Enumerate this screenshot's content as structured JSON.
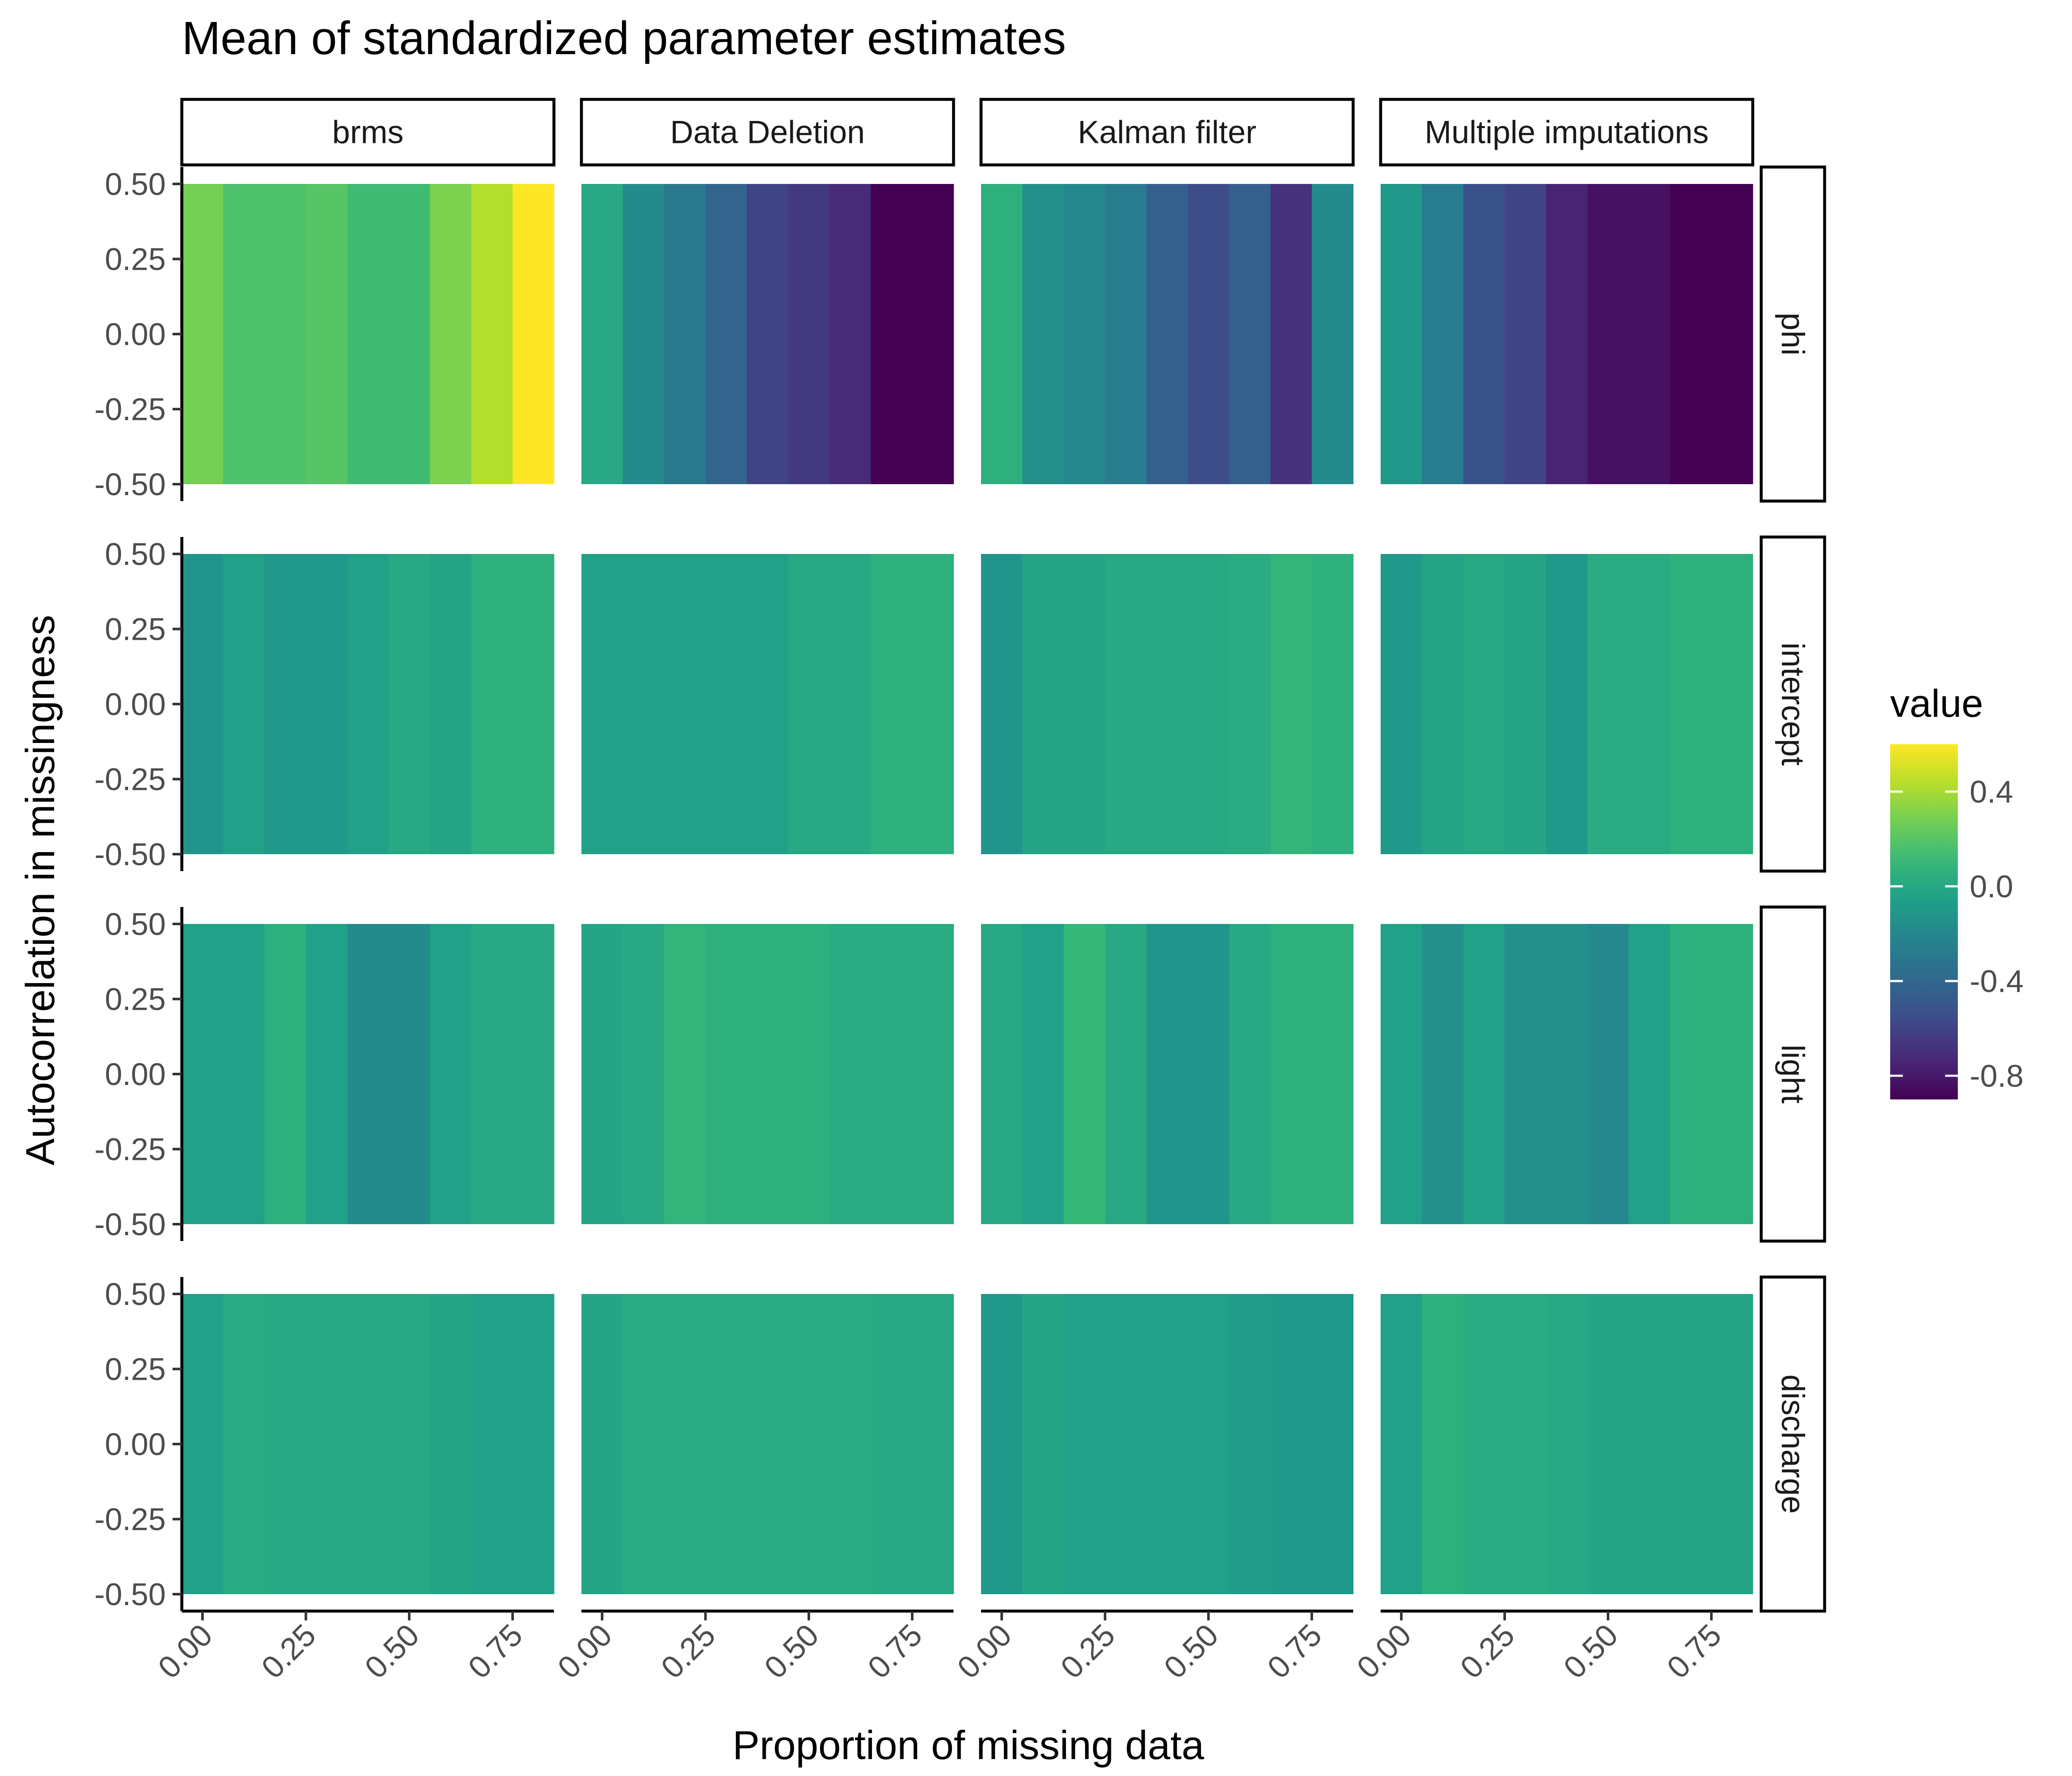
{
  "chart_data": {
    "type": "heatmap",
    "title": "Mean of standardized parameter estimates",
    "xlabel": "Proportion of missing data",
    "ylabel": "Autocorrelation in missingness",
    "x_ticks": [
      "0.00",
      "0.25",
      "0.50",
      "0.75"
    ],
    "y_ticks": [
      "0.50",
      "0.25",
      "0.00",
      "-0.25",
      "-0.50"
    ],
    "xlim": [
      -0.05,
      0.85
    ],
    "ylim": [
      -0.5,
      0.5
    ],
    "x_values": [
      0.0,
      0.1,
      0.2,
      0.3,
      0.4,
      0.5,
      0.6,
      0.7,
      0.8
    ],
    "grid": false,
    "facet_columns": [
      "brms",
      "Data Deletion",
      "Kalman filter",
      "Multiple imputations"
    ],
    "facet_rows": [
      "phi",
      "intercept",
      "light",
      "discharge"
    ],
    "legend": {
      "title": "value",
      "position": "right",
      "labels": [
        "0.4",
        "0.0",
        "-0.4",
        "-0.8"
      ],
      "tick_values": [
        0.4,
        0.0,
        -0.4,
        -0.8
      ],
      "min": -0.9,
      "max": 0.6
    },
    "colormap": "viridis",
    "values": {
      "phi": {
        "brms": [
          0.28,
          0.17,
          0.17,
          0.2,
          0.13,
          0.13,
          0.3,
          0.43,
          0.6
        ],
        "Data Deletion": [
          0.0,
          -0.18,
          -0.3,
          -0.42,
          -0.6,
          -0.65,
          -0.72,
          -0.9,
          -0.9
        ],
        "Kalman filter": [
          0.05,
          -0.15,
          -0.2,
          -0.28,
          -0.45,
          -0.55,
          -0.45,
          -0.68,
          -0.18
        ],
        "Multiple imputations": [
          -0.1,
          -0.28,
          -0.52,
          -0.6,
          -0.75,
          -0.83,
          -0.83,
          -0.9,
          -0.9
        ]
      },
      "intercept": {
        "brms": [
          -0.12,
          -0.05,
          -0.1,
          -0.1,
          -0.05,
          0.0,
          -0.03,
          0.05,
          0.05
        ],
        "Data Deletion": [
          -0.05,
          -0.05,
          -0.05,
          -0.05,
          -0.05,
          0.0,
          0.0,
          0.05,
          0.05
        ],
        "Kalman filter": [
          -0.12,
          -0.03,
          -0.03,
          0.0,
          0.0,
          0.0,
          0.02,
          0.08,
          0.05
        ],
        "Multiple imputations": [
          -0.1,
          -0.03,
          0.0,
          -0.02,
          -0.1,
          0.02,
          0.02,
          0.05,
          0.05
        ]
      },
      "light": {
        "brms": [
          -0.05,
          -0.05,
          0.05,
          -0.05,
          -0.18,
          -0.18,
          -0.05,
          0.0,
          0.0
        ],
        "Data Deletion": [
          -0.02,
          0.0,
          0.08,
          0.05,
          0.05,
          0.05,
          0.02,
          0.02,
          0.02
        ],
        "Kalman filter": [
          0.0,
          -0.05,
          0.1,
          0.0,
          -0.12,
          -0.12,
          0.0,
          0.05,
          0.05
        ],
        "Multiple imputations": [
          -0.05,
          -0.15,
          -0.05,
          -0.15,
          -0.15,
          -0.2,
          -0.05,
          0.05,
          0.05
        ]
      },
      "discharge": {
        "brms": [
          -0.05,
          0.02,
          0.0,
          0.0,
          0.0,
          0.0,
          -0.02,
          -0.05,
          -0.05
        ],
        "Data Deletion": [
          -0.02,
          0.02,
          0.02,
          0.02,
          0.02,
          0.02,
          0.02,
          0.0,
          0.0
        ],
        "Kalman filter": [
          -0.1,
          -0.02,
          -0.05,
          -0.05,
          -0.05,
          -0.05,
          -0.08,
          -0.1,
          -0.1
        ],
        "Multiple imputations": [
          -0.05,
          0.05,
          0.02,
          0.02,
          0.0,
          -0.02,
          -0.02,
          -0.02,
          -0.02
        ]
      }
    }
  }
}
